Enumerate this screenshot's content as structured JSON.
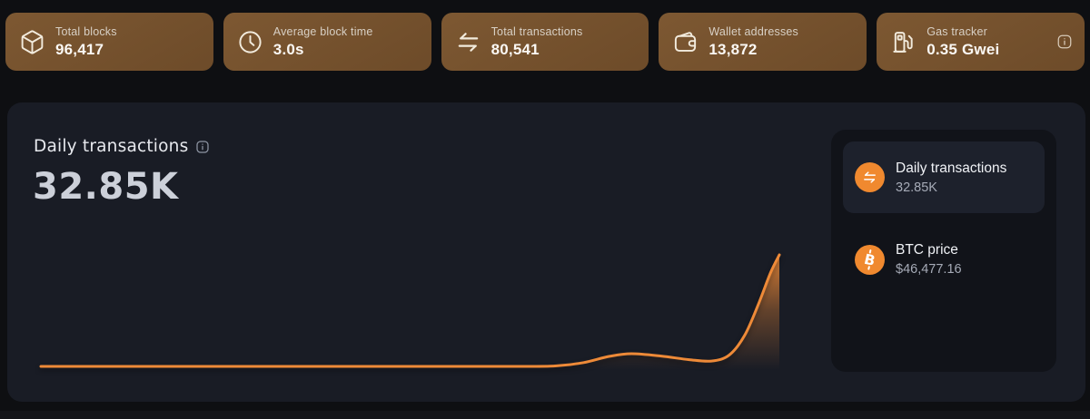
{
  "stats": {
    "cards": [
      {
        "icon": "cube-icon",
        "label": "Total blocks",
        "value": "96,417"
      },
      {
        "icon": "clock-icon",
        "label": "Average block time",
        "value": "3.0s"
      },
      {
        "icon": "transfer-arrows-icon",
        "label": "Total transactions",
        "value": "80,541"
      },
      {
        "icon": "wallet-icon",
        "label": "Wallet addresses",
        "value": "13,872"
      },
      {
        "icon": "gas-pump-icon",
        "label": "Gas tracker",
        "value": "0.35 Gwei",
        "info_icon": true
      }
    ]
  },
  "chart_panel": {
    "title": "Daily transactions",
    "title_info_icon": true,
    "big_value": "32.85K",
    "legend": [
      {
        "icon": "transfer-arrows-icon",
        "label": "Daily transactions",
        "value": "32.85K",
        "selected": true
      },
      {
        "icon": "bitcoin-icon",
        "label": "BTC price",
        "value": "$46,477.16",
        "selected": false
      }
    ]
  },
  "chart_data": {
    "type": "area",
    "title": "Daily transactions",
    "series": [
      {
        "name": "Daily transactions",
        "latest_label": "32.85K",
        "latest_value": 32850
      }
    ],
    "axes_visible": false,
    "grid": false,
    "legend_position": "right",
    "y_range_estimate": [
      0,
      32850
    ],
    "line_color": "#ee8a38",
    "fill_gradient": [
      "rgba(238,138,56,0.88)",
      "rgba(238,138,56,0.35)",
      "rgba(238,138,56,0)"
    ],
    "points_normalized": [
      [
        0.0,
        0.016
      ],
      [
        0.25,
        0.016
      ],
      [
        0.5,
        0.016
      ],
      [
        0.66,
        0.016
      ],
      [
        0.7,
        0.022
      ],
      [
        0.735,
        0.05
      ],
      [
        0.77,
        0.105
      ],
      [
        0.8,
        0.128
      ],
      [
        0.84,
        0.107
      ],
      [
        0.878,
        0.075
      ],
      [
        0.908,
        0.063
      ],
      [
        0.932,
        0.115
      ],
      [
        0.953,
        0.29
      ],
      [
        0.972,
        0.57
      ],
      [
        0.988,
        0.84
      ],
      [
        1.0,
        1.0
      ]
    ]
  },
  "colors": {
    "page_bg": "#0e0f12",
    "stat_card_bg": "#73502c",
    "panel_bg": "#191c25",
    "legend_panel_bg": "#111319",
    "legend_selected_bg": "#1d212c",
    "accent_orange": "#ee8a38",
    "legend_icon_orange": "#f0892f"
  }
}
